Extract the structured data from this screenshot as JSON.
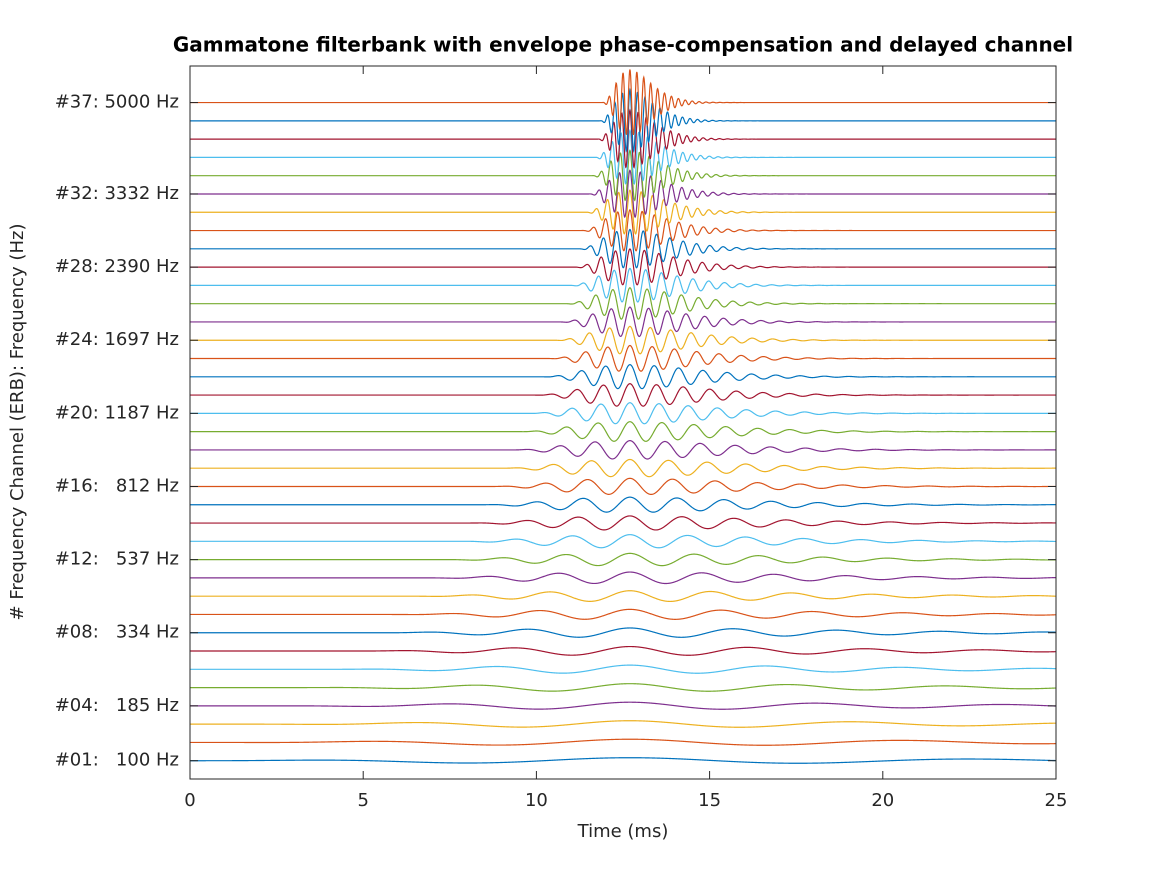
{
  "chart_data": {
    "type": "waveform-stack",
    "title": "Gammatone filterbank with envelope phase-compensation and delayed channel",
    "xlabel": "Time (ms)",
    "ylabel": "# Frequency Channel (ERB): Frequency (Hz)",
    "xlim": [
      0,
      25
    ],
    "xticks": [
      0,
      5,
      10,
      15,
      20,
      25
    ],
    "ylim": [
      0,
      39
    ],
    "yticks": [
      {
        "value": 1,
        "label": "#01:   100 Hz"
      },
      {
        "value": 4,
        "label": "#04:   185 Hz"
      },
      {
        "value": 8,
        "label": "#08:   334 Hz"
      },
      {
        "value": 12,
        "label": "#12:   537 Hz"
      },
      {
        "value": 16,
        "label": "#16:   812 Hz"
      },
      {
        "value": 20,
        "label": "#20: 1187 Hz"
      },
      {
        "value": 24,
        "label": "#24: 1697 Hz"
      },
      {
        "value": 28,
        "label": "#28: 2390 Hz"
      },
      {
        "value": 32,
        "label": "#32: 3332 Hz"
      },
      {
        "value": 37,
        "label": "#37: 5000 Hz"
      }
    ],
    "envelope_peak_ms": 12.7,
    "series": [
      {
        "channel": 1,
        "frequency": 100,
        "color": "#0072bd"
      },
      {
        "channel": 2,
        "frequency": 126,
        "color": "#d95319"
      },
      {
        "channel": 3,
        "frequency": 155,
        "color": "#edb120"
      },
      {
        "channel": 4,
        "frequency": 185,
        "color": "#7e2f8e"
      },
      {
        "channel": 5,
        "frequency": 218,
        "color": "#77ac30"
      },
      {
        "channel": 6,
        "frequency": 254,
        "color": "#4dbeee"
      },
      {
        "channel": 7,
        "frequency": 293,
        "color": "#a2142f"
      },
      {
        "channel": 8,
        "frequency": 334,
        "color": "#0072bd"
      },
      {
        "channel": 9,
        "frequency": 379,
        "color": "#d95319"
      },
      {
        "channel": 10,
        "frequency": 428,
        "color": "#edb120"
      },
      {
        "channel": 11,
        "frequency": 480,
        "color": "#7e2f8e"
      },
      {
        "channel": 12,
        "frequency": 537,
        "color": "#77ac30"
      },
      {
        "channel": 13,
        "frequency": 598,
        "color": "#4dbeee"
      },
      {
        "channel": 14,
        "frequency": 664,
        "color": "#a2142f"
      },
      {
        "channel": 15,
        "frequency": 735,
        "color": "#0072bd"
      },
      {
        "channel": 16,
        "frequency": 812,
        "color": "#d95319"
      },
      {
        "channel": 17,
        "frequency": 895,
        "color": "#edb120"
      },
      {
        "channel": 18,
        "frequency": 985,
        "color": "#7e2f8e"
      },
      {
        "channel": 19,
        "frequency": 1082,
        "color": "#77ac30"
      },
      {
        "channel": 20,
        "frequency": 1187,
        "color": "#4dbeee"
      },
      {
        "channel": 21,
        "frequency": 1300,
        "color": "#a2142f"
      },
      {
        "channel": 22,
        "frequency": 1422,
        "color": "#0072bd"
      },
      {
        "channel": 23,
        "frequency": 1554,
        "color": "#d95319"
      },
      {
        "channel": 24,
        "frequency": 1697,
        "color": "#edb120"
      },
      {
        "channel": 25,
        "frequency": 1849,
        "color": "#7e2f8e"
      },
      {
        "channel": 26,
        "frequency": 2016,
        "color": "#77ac30"
      },
      {
        "channel": 27,
        "frequency": 2195,
        "color": "#4dbeee"
      },
      {
        "channel": 28,
        "frequency": 2390,
        "color": "#a2142f"
      },
      {
        "channel": 29,
        "frequency": 2597,
        "color": "#0072bd"
      },
      {
        "channel": 30,
        "frequency": 2824,
        "color": "#d95319"
      },
      {
        "channel": 31,
        "frequency": 3067,
        "color": "#edb120"
      },
      {
        "channel": 32,
        "frequency": 3332,
        "color": "#7e2f8e"
      },
      {
        "channel": 33,
        "frequency": 3615,
        "color": "#77ac30"
      },
      {
        "channel": 34,
        "frequency": 3921,
        "color": "#4dbeee"
      },
      {
        "channel": 35,
        "frequency": 4252,
        "color": "#a2142f"
      },
      {
        "channel": 36,
        "frequency": 4609,
        "color": "#0072bd"
      },
      {
        "channel": 37,
        "frequency": 5000,
        "color": "#d95319"
      }
    ]
  }
}
